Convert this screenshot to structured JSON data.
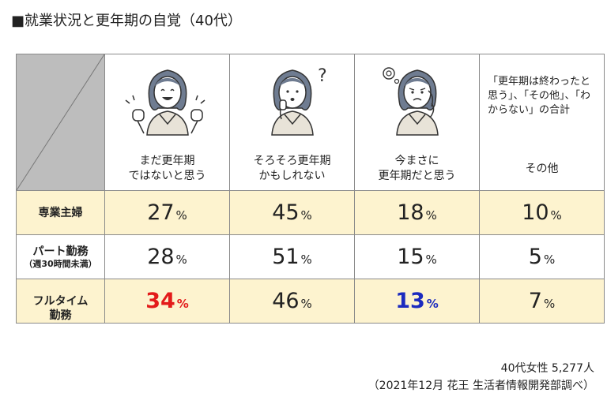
{
  "title": "■就業状況と更年期の自覚（40代）",
  "chart_data": {
    "type": "table",
    "columns": [
      {
        "label": "まだ更年期\nではないと思う",
        "icon": "woman-cheerful-icon"
      },
      {
        "label": "そろそろ更年期\nかもしれない",
        "icon": "woman-wondering-icon"
      },
      {
        "label": "今まさに\n更年期だと思う",
        "icon": "woman-troubled-icon"
      },
      {
        "label": "その他",
        "note": "「更年期は終わったと思う」、「その他」、「わからない」の合計"
      }
    ],
    "rows": [
      {
        "label": "専業主婦",
        "sub": "",
        "values": [
          27,
          45,
          18,
          10
        ],
        "highlight": true
      },
      {
        "label": "パート勤務",
        "sub": "（週30時間未満）",
        "values": [
          28,
          51,
          15,
          5
        ],
        "highlight": false
      },
      {
        "label": "フルタイム\n勤務",
        "sub": "",
        "values": [
          34,
          46,
          13,
          7
        ],
        "highlight": true
      }
    ],
    "unit": "%",
    "emphasis": [
      {
        "row": 2,
        "col": 0,
        "color": "#e31b1b"
      },
      {
        "row": 2,
        "col": 2,
        "color": "#1c2bbf"
      }
    ]
  },
  "source": {
    "line1": "40代女性 5,277人",
    "line2": "（2021年12月 花王 生活者情報開発部調べ）"
  },
  "colors": {
    "header_corner": "#bdbdbd",
    "row_highlight": "#fdf3cf",
    "hair": "#6f7c91",
    "sweater": "#e8e3d8"
  }
}
